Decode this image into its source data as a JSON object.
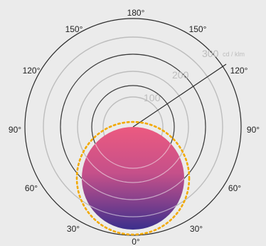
{
  "diagram": {
    "angle_labels": [
      {
        "id": "180",
        "text": "180°"
      },
      {
        "id": "150-left",
        "text": "150°"
      },
      {
        "id": "150-right",
        "text": "150°"
      },
      {
        "id": "120-left",
        "text": "120°"
      },
      {
        "id": "120-right",
        "text": "120°"
      },
      {
        "id": "90-left",
        "text": "90°"
      },
      {
        "id": "90-right",
        "text": "90°"
      },
      {
        "id": "60-left",
        "text": "60°"
      },
      {
        "id": "60-right",
        "text": "60°"
      },
      {
        "id": "30-left",
        "text": "30°"
      },
      {
        "id": "30-right",
        "text": "30°"
      },
      {
        "id": "0",
        "text": "0°"
      }
    ],
    "value_labels": {
      "v100": "100",
      "v200": "200",
      "v300": "300",
      "unit": "cd / klm"
    },
    "colors": {
      "background": "#ebebeb",
      "outer_ring": "#2b2b2b",
      "grey_ring": "#bdbdbd",
      "dark_ring": "#3a3a3a",
      "light_ring": "#f5f5f5",
      "dashed_outline": "#f2a900",
      "lobe_top": "#ec5a80",
      "lobe_mid": "#a94a8e",
      "lobe_bottom": "#3b2f8c"
    }
  }
}
